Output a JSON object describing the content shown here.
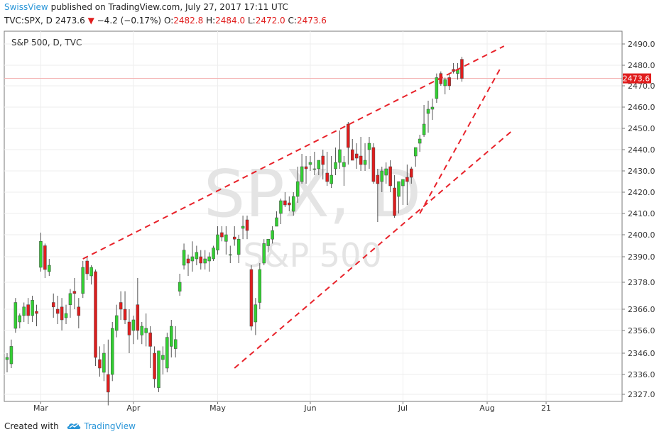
{
  "header": {
    "publisher": "SwissView",
    "published_text": "published on TradingView.com, July 27, 2017 17:11 UTC",
    "symbol": "TVC:SPX, D",
    "last": "2473.6",
    "change": "−4.2 (−0.17%)",
    "o_label": "O:",
    "o_value": "2482.8",
    "h_label": "H:",
    "h_value": "2484.0",
    "l_label": "L:",
    "l_value": "2472.0",
    "c_label": "C:",
    "c_value": "2473.6"
  },
  "footer": {
    "created_with": "Created with",
    "brand": "TradingView"
  },
  "colors": {
    "up": "#33d033",
    "down": "#e01d1d",
    "trendline": "#e8222a",
    "price_line": "#f4b5b5",
    "accent": "#2a96d8"
  },
  "chart_data": {
    "type": "candlestick",
    "title": "S&P 500, D, TVC",
    "watermark_symbol": "SPX, D",
    "watermark_name": "S&P 500",
    "current_price_label": "2473.6",
    "current_price": 2473.6,
    "y_ticks": [
      2327.0,
      2336.0,
      2346.0,
      2356.0,
      2366.0,
      2378.0,
      2390.0,
      2400.0,
      2410.0,
      2420.0,
      2430.0,
      2440.0,
      2450.0,
      2460.0,
      2470.0,
      2480.0,
      2490.0
    ],
    "y_tick_labels": [
      "2327.0",
      "2336.0",
      "2346.0",
      "2356.0",
      "2366.0",
      "2378.0",
      "2390.0",
      "2400.0",
      "2410.0",
      "2420.0",
      "2430.0",
      "2440.0",
      "2450.0",
      "2460.0",
      "2470.0",
      "2480.0",
      "2490.0"
    ],
    "x_ticks": [
      {
        "label": "Mar",
        "index": 8
      },
      {
        "label": "Apr",
        "index": 30
      },
      {
        "label": "May",
        "index": 50
      },
      {
        "label": "Jun",
        "index": 72
      },
      {
        "label": "Jul",
        "index": 94
      },
      {
        "label": "Aug",
        "index": 114
      },
      {
        "label": "21",
        "index": 128
      }
    ],
    "candles": [
      [
        2343,
        2346,
        2337,
        2344
      ],
      [
        2341,
        2352,
        2339,
        2349
      ],
      [
        2357,
        2371,
        2355,
        2369
      ],
      [
        2360,
        2364,
        2357,
        2363
      ],
      [
        2363,
        2369,
        2360,
        2367
      ],
      [
        2368,
        2371,
        2359,
        2363
      ],
      [
        2363,
        2372,
        2360,
        2370
      ],
      [
        2365,
        2368,
        2358,
        2364
      ],
      [
        2385,
        2401,
        2383,
        2397
      ],
      [
        2395,
        2396,
        2380,
        2384
      ],
      [
        2383,
        2389,
        2381,
        2386
      ],
      [
        2369,
        2373,
        2362,
        2367
      ],
      [
        2366,
        2372,
        2359,
        2364
      ],
      [
        2367,
        2371,
        2356,
        2361
      ],
      [
        2362,
        2368,
        2359,
        2364
      ],
      [
        2368,
        2375,
        2362,
        2373
      ],
      [
        2374,
        2380,
        2366,
        2373
      ],
      [
        2367,
        2371,
        2357,
        2363
      ],
      [
        2373,
        2388,
        2371,
        2385
      ],
      [
        2388,
        2390,
        2379,
        2382
      ],
      [
        2381,
        2386,
        2377,
        2385
      ],
      [
        2383,
        2384,
        2340,
        2344
      ],
      [
        2343,
        2349,
        2335,
        2339
      ],
      [
        2337,
        2350,
        2333,
        2346
      ],
      [
        2336,
        2352,
        2322,
        2328
      ],
      [
        2336,
        2360,
        2333,
        2357
      ],
      [
        2356,
        2368,
        2353,
        2363
      ],
      [
        2369,
        2374,
        2361,
        2366
      ],
      [
        2366,
        2374,
        2359,
        2361
      ],
      [
        2360,
        2366,
        2346,
        2354
      ],
      [
        2356,
        2363,
        2350,
        2361
      ],
      [
        2368,
        2380,
        2352,
        2356
      ],
      [
        2354,
        2360,
        2350,
        2358
      ],
      [
        2355,
        2364,
        2349,
        2357
      ],
      [
        2355,
        2358,
        2339,
        2349
      ],
      [
        2346,
        2349,
        2330,
        2334
      ],
      [
        2330,
        2347,
        2328,
        2347
      ],
      [
        2343,
        2349,
        2336,
        2345
      ],
      [
        2339,
        2355,
        2337,
        2353
      ],
      [
        2349,
        2361,
        2344,
        2358
      ],
      [
        2348,
        2358,
        2344,
        2352
      ],
      [
        2374,
        2382,
        2372,
        2378
      ],
      [
        2386,
        2396,
        2384,
        2393
      ],
      [
        2389,
        2391,
        2381,
        2387
      ],
      [
        2388,
        2397,
        2383,
        2390
      ],
      [
        2389,
        2395,
        2386,
        2392
      ],
      [
        2390,
        2393,
        2384,
        2387
      ],
      [
        2387,
        2393,
        2384,
        2389
      ],
      [
        2388,
        2392,
        2383,
        2390
      ],
      [
        2389,
        2395,
        2388,
        2394
      ],
      [
        2393,
        2404,
        2391,
        2400
      ],
      [
        2401,
        2404,
        2397,
        2399
      ],
      [
        2397,
        2404,
        2391,
        2400
      ],
      [
        2391,
        2395,
        2387,
        2391
      ],
      [
        2399,
        2404,
        2395,
        2398
      ],
      [
        2391,
        2400,
        2387,
        2398
      ],
      [
        2403,
        2409,
        2398,
        2404
      ],
      [
        2407,
        2409,
        2398,
        2402
      ],
      [
        2384,
        2386,
        2356,
        2358
      ],
      [
        2360,
        2371,
        2354,
        2368
      ],
      [
        2369,
        2387,
        2366,
        2384
      ],
      [
        2387,
        2398,
        2386,
        2396
      ],
      [
        2395,
        2398,
        2392,
        2398
      ],
      [
        2398,
        2404,
        2396,
        2402
      ],
      [
        2404,
        2411,
        2404,
        2408
      ],
      [
        2410,
        2417,
        2405,
        2416
      ],
      [
        2416,
        2420,
        2413,
        2414
      ],
      [
        2415,
        2418,
        2411,
        2414
      ],
      [
        2411,
        2420,
        2409,
        2418
      ],
      [
        2418,
        2432,
        2415,
        2425
      ],
      [
        2425,
        2438,
        2424,
        2432
      ],
      [
        2432,
        2437,
        2424,
        2431
      ],
      [
        2433,
        2437,
        2430,
        2434
      ],
      [
        2431,
        2439,
        2428,
        2431
      ],
      [
        2431,
        2435,
        2428,
        2435
      ],
      [
        2437,
        2440,
        2426,
        2433
      ],
      [
        2429,
        2439,
        2423,
        2425
      ],
      [
        2424,
        2437,
        2422,
        2428
      ],
      [
        2431,
        2441,
        2428,
        2434
      ],
      [
        2434,
        2449,
        2431,
        2440
      ],
      [
        2432,
        2437,
        2423,
        2434
      ],
      [
        2452,
        2453,
        2433,
        2441
      ],
      [
        2440,
        2445,
        2436,
        2435
      ],
      [
        2438,
        2443,
        2431,
        2436
      ],
      [
        2437,
        2446,
        2430,
        2433
      ],
      [
        2433,
        2443,
        2430,
        2435
      ],
      [
        2440,
        2446,
        2431,
        2443
      ],
      [
        2441,
        2443,
        2424,
        2425
      ],
      [
        2428,
        2431,
        2406,
        2424
      ],
      [
        2425,
        2432,
        2420,
        2430
      ],
      [
        2428,
        2434,
        2424,
        2431
      ],
      [
        2432,
        2435,
        2420,
        2423
      ],
      [
        2422,
        2428,
        2408,
        2409
      ],
      [
        2418,
        2425,
        2410,
        2425
      ],
      [
        2423,
        2426,
        2414,
        2426
      ],
      [
        2427,
        2433,
        2414,
        2425
      ],
      [
        2431,
        2432,
        2424,
        2427
      ],
      [
        2437,
        2441,
        2432,
        2441
      ],
      [
        2443,
        2447,
        2439,
        2445
      ],
      [
        2447,
        2461,
        2446,
        2452
      ],
      [
        2457,
        2463,
        2448,
        2459
      ],
      [
        2459,
        2464,
        2454,
        2460
      ],
      [
        2464,
        2476,
        2462,
        2474
      ],
      [
        2476,
        2477,
        2470,
        2471
      ],
      [
        2470,
        2474,
        2466,
        2473
      ],
      [
        2474,
        2476,
        2468,
        2470
      ],
      [
        2478,
        2481,
        2476,
        2477
      ],
      [
        2476,
        2481,
        2473,
        2478
      ],
      [
        2482.8,
        2484,
        2472,
        2473.6
      ]
    ],
    "trendlines": [
      {
        "x": [
          18,
          118
        ],
        "y": [
          2389,
          2489
        ]
      },
      {
        "x": [
          54,
          120
        ],
        "y": [
          2339,
          2449
        ]
      },
      {
        "x": [
          98,
          117
        ],
        "y": [
          2410,
          2478
        ]
      }
    ]
  }
}
